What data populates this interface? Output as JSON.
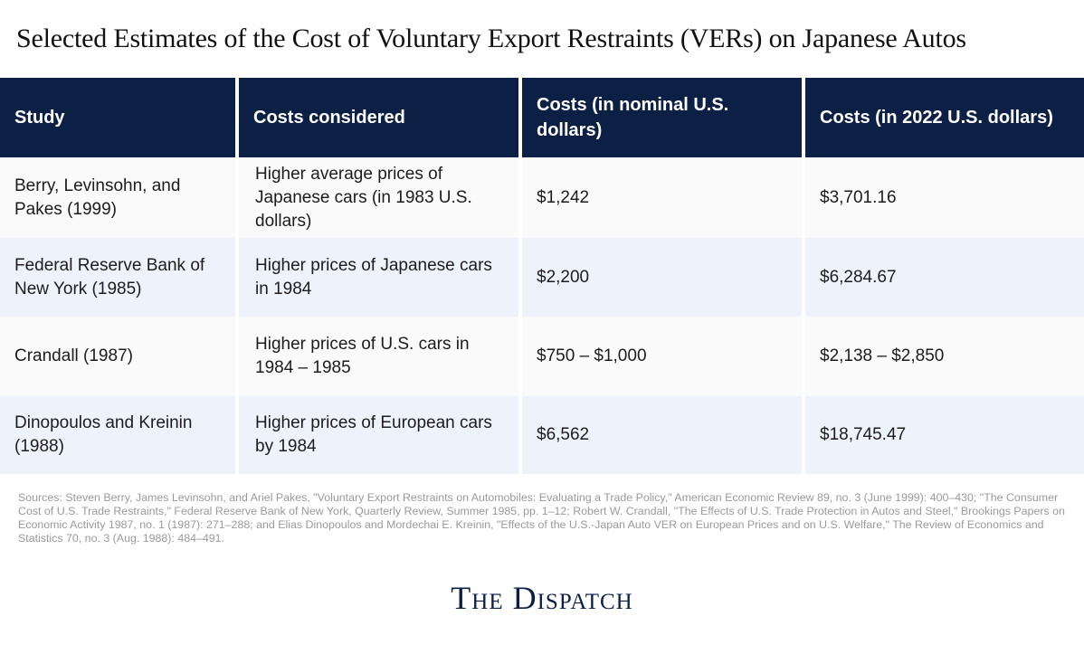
{
  "title": "Selected Estimates of the Cost of Voluntary Export Restraints (VERs) on Japanese Autos",
  "table": {
    "headers": [
      "Study",
      "Costs considered",
      "Costs (in nominal U.S. dollars)",
      "Costs (in 2022 U.S. dollars)"
    ],
    "rows": [
      [
        "Berry, Levinsohn, and Pakes (1999)",
        "Higher average prices of Japanese cars (in 1983 U.S. dollars)",
        "$1,242",
        "$3,701.16"
      ],
      [
        "Federal Reserve Bank of New York (1985)",
        "Higher prices of Japanese cars in 1984",
        "$2,200",
        "$6,284.67"
      ],
      [
        "Crandall (1987)",
        "Higher prices of U.S. cars in 1984 – 1985",
        "$750 – $1,000",
        "$2,138 – $2,850"
      ],
      [
        "Dinopoulos and Kreinin (1988)",
        "Higher prices of European cars by 1984",
        "$6,562",
        "$18,745.47"
      ]
    ]
  },
  "sources": "Sources: Steven Berry, James Levinsohn, and Ariel Pakes, \"Voluntary Export Restraints on Automobiles: Evaluating a Trade Policy,\" American Economic Review 89, no. 3 (June 1999): 400–430; \"The Consumer Cost of U.S. Trade Restraints,\" Federal Reserve Bank of New York, Quarterly Review, Summer 1985, pp. 1–12; Robert W. Crandall, \"The Effects of U.S. Trade Protection in Autos and Steel,\" Brookings Papers on Economic Activity 1987, no. 1 (1987): 271–288; and Elias Dinopoulos and Mordechai E. Kreinin, \"Effects of the U.S.-Japan Auto VER on European Prices and on U.S. Welfare,\" The Review of Economics and Statistics 70, no. 3 (Aug. 1988): 484–491.",
  "brand": "The Dispatch",
  "colors": {
    "header_bg": "#0c1f45",
    "row_light": "#fafafa",
    "row_tint": "#eef3fb",
    "brand": "#0c1f45"
  }
}
